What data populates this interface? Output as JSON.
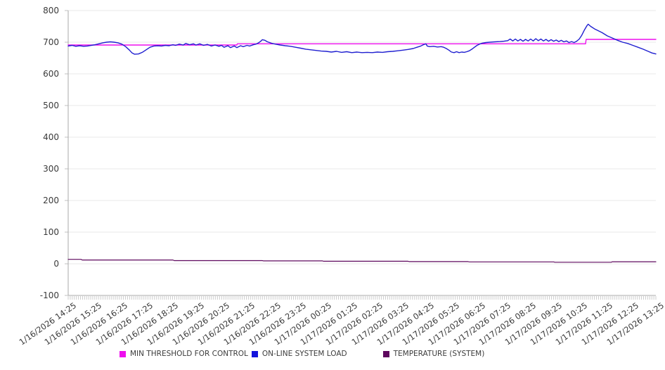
{
  "chart_data": {
    "type": "line",
    "title": "",
    "xlabel": "",
    "ylabel": "",
    "ylim": [
      -100,
      800
    ],
    "yticks": [
      800,
      700,
      600,
      500,
      400,
      300,
      200,
      100,
      0,
      -100
    ],
    "grid": "horizontal",
    "legend_position": "bottom",
    "x_range_hours": [
      0,
      23
    ],
    "x_labels": [
      "1/16/2026 14:25",
      "1/16/2026 15:25",
      "1/16/2026 16:25",
      "1/16/2026 17:25",
      "1/16/2026 18:25",
      "1/16/2026 19:25",
      "1/16/2026 20:25",
      "1/16/2026 21:25",
      "1/16/2026 22:25",
      "1/16/2026 23:25",
      "1/17/2026 00:25",
      "1/17/2026 01:25",
      "1/17/2026 02:25",
      "1/17/2026 03:25",
      "1/17/2026 04:25",
      "1/17/2026 05:25",
      "1/17/2026 06:25",
      "1/17/2026 07:25",
      "1/17/2026 08:25",
      "1/17/2026 09:25",
      "1/17/2026 10:25",
      "1/17/2026 11:25",
      "1/17/2026 12:25",
      "1/17/2026 13:25"
    ],
    "series": [
      {
        "name": "MIN THRESHOLD FOR CONTROL",
        "color": "#ee0eee",
        "width": 1.4,
        "points": [
          [
            0,
            691
          ],
          [
            6.6,
            691
          ],
          [
            6.62,
            695
          ],
          [
            20.25,
            695
          ],
          [
            20.27,
            709
          ],
          [
            23,
            709
          ]
        ]
      },
      {
        "name": "TEMPERATURE (SYSTEM)",
        "color": "#5e085e",
        "width": 1.2,
        "points": [
          [
            0,
            14
          ],
          [
            0.5,
            14
          ],
          [
            0.55,
            12
          ],
          [
            4.1,
            12
          ],
          [
            4.15,
            10
          ],
          [
            7.6,
            10
          ],
          [
            7.65,
            9
          ],
          [
            9.95,
            9
          ],
          [
            10,
            8
          ],
          [
            13.3,
            8
          ],
          [
            13.35,
            7
          ],
          [
            15.65,
            7
          ],
          [
            15.7,
            6
          ],
          [
            19,
            6
          ],
          [
            19.05,
            5
          ],
          [
            21.25,
            5
          ],
          [
            21.3,
            6.5
          ],
          [
            23,
            6.5
          ]
        ]
      },
      {
        "name": "ON-LINE SYSTEM LOAD",
        "color": "#1f1fd0",
        "width": 1.4,
        "points": [
          [
            0,
            688
          ],
          [
            0.15,
            690
          ],
          [
            0.3,
            687
          ],
          [
            0.45,
            689
          ],
          [
            0.6,
            687
          ],
          [
            0.75,
            688
          ],
          [
            0.9,
            690
          ],
          [
            1.05,
            692
          ],
          [
            1.2,
            695
          ],
          [
            1.35,
            698
          ],
          [
            1.5,
            700
          ],
          [
            1.65,
            701
          ],
          [
            1.8,
            700
          ],
          [
            1.95,
            698
          ],
          [
            2.1,
            694
          ],
          [
            2.25,
            686
          ],
          [
            2.4,
            675
          ],
          [
            2.5,
            666
          ],
          [
            2.6,
            662
          ],
          [
            2.75,
            663
          ],
          [
            2.9,
            668
          ],
          [
            3.05,
            676
          ],
          [
            3.2,
            684
          ],
          [
            3.35,
            688
          ],
          [
            3.5,
            689
          ],
          [
            3.65,
            688
          ],
          [
            3.8,
            690
          ],
          [
            3.95,
            689
          ],
          [
            4.1,
            692
          ],
          [
            4.2,
            690
          ],
          [
            4.35,
            694
          ],
          [
            4.5,
            691
          ],
          [
            4.6,
            696
          ],
          [
            4.75,
            692
          ],
          [
            4.9,
            695
          ],
          [
            5,
            691
          ],
          [
            5.15,
            695
          ],
          [
            5.3,
            690
          ],
          [
            5.45,
            693
          ],
          [
            5.6,
            688
          ],
          [
            5.75,
            691
          ],
          [
            5.9,
            687
          ],
          [
            6,
            690
          ],
          [
            6.1,
            684
          ],
          [
            6.25,
            689
          ],
          [
            6.35,
            683
          ],
          [
            6.5,
            688
          ],
          [
            6.6,
            683
          ],
          [
            6.75,
            689
          ],
          [
            6.85,
            686
          ],
          [
            7,
            690
          ],
          [
            7.1,
            688
          ],
          [
            7.25,
            692
          ],
          [
            7.35,
            694
          ],
          [
            7.45,
            698
          ],
          [
            7.55,
            704
          ],
          [
            7.6,
            708
          ],
          [
            7.7,
            706
          ],
          [
            7.8,
            701
          ],
          [
            7.95,
            697
          ],
          [
            8.1,
            694
          ],
          [
            8.3,
            691
          ],
          [
            8.5,
            689
          ],
          [
            8.7,
            687
          ],
          [
            8.9,
            684
          ],
          [
            9.1,
            681
          ],
          [
            9.3,
            678
          ],
          [
            9.5,
            676
          ],
          [
            9.7,
            674
          ],
          [
            9.9,
            672
          ],
          [
            10.1,
            671
          ],
          [
            10.3,
            669
          ],
          [
            10.5,
            671
          ],
          [
            10.7,
            668
          ],
          [
            10.9,
            670
          ],
          [
            11.1,
            667
          ],
          [
            11.3,
            669
          ],
          [
            11.5,
            667
          ],
          [
            11.7,
            668
          ],
          [
            11.9,
            667
          ],
          [
            12.1,
            669
          ],
          [
            12.3,
            668
          ],
          [
            12.5,
            670
          ],
          [
            12.7,
            671
          ],
          [
            12.9,
            673
          ],
          [
            13.1,
            675
          ],
          [
            13.3,
            677
          ],
          [
            13.5,
            680
          ],
          [
            13.65,
            684
          ],
          [
            13.8,
            688
          ],
          [
            13.9,
            692
          ],
          [
            14,
            695
          ],
          [
            14.05,
            688
          ],
          [
            14.15,
            686
          ],
          [
            14.3,
            687
          ],
          [
            14.45,
            685
          ],
          [
            14.6,
            686
          ],
          [
            14.7,
            684
          ],
          [
            14.8,
            680
          ],
          [
            14.9,
            675
          ],
          [
            15,
            669
          ],
          [
            15.1,
            667
          ],
          [
            15.2,
            670
          ],
          [
            15.3,
            667
          ],
          [
            15.4,
            669
          ],
          [
            15.5,
            668
          ],
          [
            15.6,
            670
          ],
          [
            15.7,
            673
          ],
          [
            15.8,
            678
          ],
          [
            15.9,
            684
          ],
          [
            16,
            690
          ],
          [
            16.1,
            694
          ],
          [
            16.2,
            697
          ],
          [
            16.35,
            699
          ],
          [
            16.5,
            700
          ],
          [
            16.7,
            701
          ],
          [
            16.9,
            702
          ],
          [
            17.05,
            703
          ],
          [
            17.2,
            705
          ],
          [
            17.3,
            710
          ],
          [
            17.4,
            704
          ],
          [
            17.5,
            710
          ],
          [
            17.6,
            704
          ],
          [
            17.7,
            709
          ],
          [
            17.8,
            703
          ],
          [
            17.9,
            709
          ],
          [
            18,
            704
          ],
          [
            18.1,
            710
          ],
          [
            18.2,
            704
          ],
          [
            18.3,
            711
          ],
          [
            18.4,
            705
          ],
          [
            18.5,
            710
          ],
          [
            18.6,
            704
          ],
          [
            18.7,
            709
          ],
          [
            18.8,
            703
          ],
          [
            18.9,
            708
          ],
          [
            19,
            703
          ],
          [
            19.1,
            707
          ],
          [
            19.2,
            702
          ],
          [
            19.3,
            706
          ],
          [
            19.4,
            701
          ],
          [
            19.5,
            704
          ],
          [
            19.6,
            699
          ],
          [
            19.7,
            702
          ],
          [
            19.8,
            699
          ],
          [
            19.9,
            703
          ],
          [
            20,
            710
          ],
          [
            20.1,
            722
          ],
          [
            20.2,
            738
          ],
          [
            20.3,
            752
          ],
          [
            20.35,
            757
          ],
          [
            20.45,
            750
          ],
          [
            20.6,
            742
          ],
          [
            20.75,
            736
          ],
          [
            20.9,
            730
          ],
          [
            21.1,
            720
          ],
          [
            21.3,
            713
          ],
          [
            21.5,
            706
          ],
          [
            21.7,
            700
          ],
          [
            21.9,
            696
          ],
          [
            22.1,
            690
          ],
          [
            22.3,
            684
          ],
          [
            22.5,
            678
          ],
          [
            22.7,
            671
          ],
          [
            22.85,
            666
          ],
          [
            23,
            663
          ]
        ]
      }
    ]
  },
  "legend": {
    "items": [
      {
        "label": "MIN THRESHOLD FOR CONTROL",
        "color": "#ee0eee"
      },
      {
        "label": "ON-LINE SYSTEM LOAD",
        "color": "#1414dc"
      },
      {
        "label": "TEMPERATURE (SYSTEM)",
        "color": "#5e085e"
      }
    ]
  },
  "style_colors": {
    "axis_line": "#aaaaaa",
    "gridline": "#e9e9e9",
    "tick": "#c2c2c2",
    "text": "#3a3a3a"
  }
}
